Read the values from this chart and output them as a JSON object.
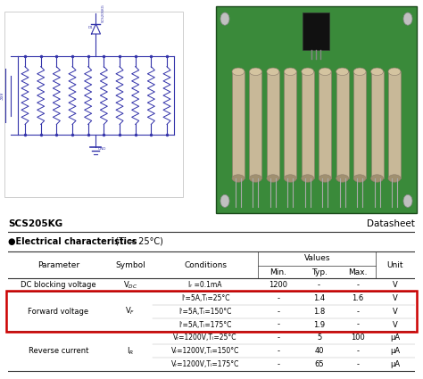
{
  "title_left": "SCS205KG",
  "title_right": "Datasheet",
  "section_title": "●Electrical characteristics",
  "section_subtitle": " (Tᵢ = 25°C)",
  "rows": [
    {
      "parameter": "DC blocking voltage",
      "symbol_display": "V_DC",
      "conditions": [
        "Iᵣ =0.1mA"
      ],
      "min": [
        "1200"
      ],
      "typ": [
        "-"
      ],
      "max": [
        "-"
      ],
      "unit": [
        "V"
      ],
      "highlight": false
    },
    {
      "parameter": "Forward voltage",
      "symbol_display": "V_F",
      "conditions": [
        "Iᶠ=5A,Tᵢ=25°C",
        "Iᶠ=5A,Tᵢ=150°C",
        "Iᶠ=5A,Tᵢ=175°C"
      ],
      "min": [
        "-",
        "-",
        "-"
      ],
      "typ": [
        "1.4",
        "1.8",
        "1.9"
      ],
      "max": [
        "1.6",
        "-",
        "-"
      ],
      "unit": [
        "V",
        "V",
        "V"
      ],
      "highlight": true
    },
    {
      "parameter": "Reverse current",
      "symbol_display": "I_R",
      "conditions": [
        "Vᵣ=1200V,Tᵢ=25°C",
        "Vᵣ=1200V,Tᵢ=150°C",
        "Vᵣ=1200V,Tᵢ=175°C"
      ],
      "min": [
        "-",
        "-",
        "-"
      ],
      "typ": [
        "5",
        "40",
        "65"
      ],
      "max": [
        "100",
        "-",
        "-"
      ],
      "unit": [
        "μA",
        "μA",
        "μA"
      ],
      "highlight": false
    }
  ],
  "highlight_color": "#cc0000",
  "header_line_color": "#333333",
  "bg_color": "#ffffff",
  "text_color": "#000000",
  "gray_line": "#bbbbbb",
  "schematic_color": "#3333aa",
  "pcb_green": "#2d6e2d",
  "pcb_light_green": "#3a8a3a",
  "component_tan": "#c8b898",
  "component_tan2": "#d4c4a0"
}
